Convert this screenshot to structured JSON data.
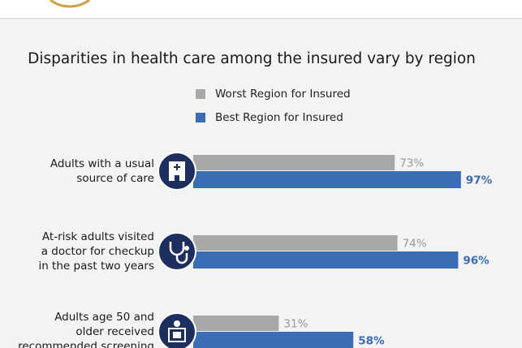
{
  "chart_data": {
    "type": "bar",
    "orientation": "horizontal",
    "title": "Disparities in health care among the insured vary by region",
    "categories": [
      [
        "Adults with a usual",
        "source of care"
      ],
      [
        "At-risk adults visited",
        "a doctor for checkup",
        "in the past two years"
      ],
      [
        "Adults age 50 and",
        "older received",
        "recommended screening"
      ]
    ],
    "series": [
      {
        "name": "Worst Region for Insured",
        "color": "#a8a8a8",
        "values": [
          73,
          74,
          31
        ],
        "value_labels": [
          "73%",
          "74%",
          "31%"
        ]
      },
      {
        "name": "Best Region for Insured",
        "color": "#3b6db4",
        "values": [
          97,
          96,
          58
        ],
        "value_labels": [
          "97%",
          "96%",
          "58%"
        ]
      }
    ]
  }
}
